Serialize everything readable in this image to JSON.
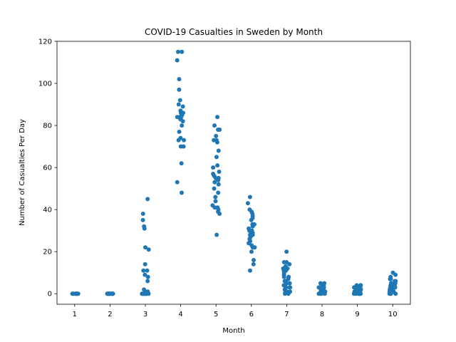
{
  "chart_data": {
    "type": "scatter",
    "title": "COVID-19 Casualties in Sweden by Month",
    "xlabel": "Month",
    "ylabel": "Number of Casualties Per Day",
    "xlim": [
      0.5,
      10.5
    ],
    "ylim": [
      -5,
      120
    ],
    "x_ticks": [
      1,
      2,
      3,
      4,
      5,
      6,
      7,
      8,
      9,
      10
    ],
    "y_ticks": [
      0,
      20,
      40,
      60,
      80,
      100,
      120
    ],
    "grid": false,
    "legend": "none",
    "marker_color": "#1f77b4",
    "series": [
      {
        "month": 1,
        "values": [
          0,
          0,
          0,
          0,
          0,
          0,
          0,
          0,
          0,
          0,
          0,
          0
        ]
      },
      {
        "month": 2,
        "values": [
          0,
          0,
          0,
          0,
          0,
          0,
          0,
          0,
          0,
          0,
          0,
          0,
          0,
          0,
          0,
          0,
          0,
          0
        ]
      },
      {
        "month": 3,
        "values": [
          45,
          38,
          35,
          32,
          31,
          22,
          21,
          14,
          11,
          11,
          9,
          8,
          6,
          2,
          1,
          1,
          0,
          0,
          0,
          0,
          0,
          0,
          0,
          0,
          0,
          0,
          0,
          0,
          0,
          0,
          0
        ]
      },
      {
        "month": 4,
        "values": [
          115,
          115,
          111,
          102,
          97,
          92,
          90,
          89,
          87,
          86,
          86,
          85,
          85,
          84,
          84,
          83,
          83,
          80,
          77,
          74,
          73,
          73,
          70,
          70,
          62,
          53,
          48,
          85,
          84,
          82
        ]
      },
      {
        "month": 5,
        "values": [
          84,
          80,
          78,
          78,
          75,
          73,
          73,
          72,
          68,
          65,
          61,
          60,
          58,
          57,
          56,
          55,
          54,
          53,
          52,
          50,
          48,
          46,
          44,
          42,
          41,
          41,
          40,
          39,
          38,
          28,
          55
        ]
      },
      {
        "month": 6,
        "values": [
          46,
          43,
          40,
          39,
          38,
          37,
          36,
          35,
          33,
          33,
          32,
          31,
          30,
          30,
          29,
          29,
          28,
          28,
          28,
          27,
          26,
          25,
          24,
          23,
          22,
          22,
          20,
          16,
          14,
          11
        ]
      },
      {
        "month": 7,
        "values": [
          20,
          15,
          15,
          14,
          13,
          12,
          12,
          11,
          11,
          10,
          9,
          8,
          8,
          7,
          7,
          6,
          6,
          5,
          5,
          4,
          4,
          3,
          3,
          3,
          2,
          2,
          1,
          1,
          0,
          0,
          1
        ]
      },
      {
        "month": 8,
        "values": [
          5,
          5,
          4,
          4,
          4,
          4,
          3,
          3,
          3,
          3,
          3,
          3,
          2,
          2,
          2,
          2,
          2,
          2,
          2,
          2,
          1,
          1,
          1,
          1,
          1,
          1,
          1,
          0,
          0,
          0,
          0
        ]
      },
      {
        "month": 9,
        "values": [
          4,
          4,
          4,
          3,
          3,
          3,
          3,
          3,
          2,
          2,
          2,
          2,
          2,
          2,
          2,
          1,
          1,
          1,
          1,
          1,
          1,
          1,
          0,
          0,
          0,
          0,
          0,
          0,
          0,
          0
        ]
      },
      {
        "month": 10,
        "values": [
          10,
          9,
          8,
          7,
          7,
          6,
          6,
          5,
          5,
          5,
          4,
          4,
          4,
          4,
          3,
          3,
          3,
          3,
          3,
          2,
          2,
          2,
          2,
          1,
          1,
          1,
          1,
          0,
          0,
          0,
          0
        ]
      }
    ]
  }
}
